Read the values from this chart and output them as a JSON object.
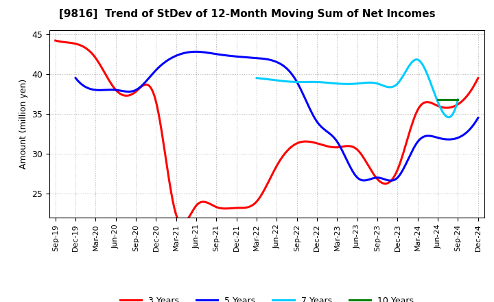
{
  "title": "[9816]  Trend of StDev of 12-Month Moving Sum of Net Incomes",
  "ylabel": "Amount (million yen)",
  "x_labels": [
    "Sep-19",
    "Dec-19",
    "Mar-20",
    "Jun-20",
    "Sep-20",
    "Dec-20",
    "Mar-21",
    "Jun-21",
    "Sep-21",
    "Dec-21",
    "Mar-22",
    "Jun-22",
    "Sep-22",
    "Dec-22",
    "Mar-23",
    "Jun-23",
    "Sep-23",
    "Dec-23",
    "Mar-24",
    "Jun-24",
    "Sep-24",
    "Dec-24"
  ],
  "y3yr": [
    44.2,
    43.8,
    42.0,
    38.0,
    37.8,
    36.5,
    22.3,
    23.5,
    23.3,
    23.2,
    24.0,
    28.5,
    31.3,
    31.3,
    30.8,
    30.5,
    26.8,
    28.0,
    35.5,
    36.0,
    36.2,
    39.5
  ],
  "y5yr": [
    null,
    39.5,
    38.0,
    38.0,
    38.0,
    40.5,
    42.3,
    42.8,
    42.5,
    42.2,
    42.0,
    41.5,
    39.0,
    34.0,
    31.5,
    27.0,
    27.0,
    27.0,
    31.5,
    32.0,
    32.0,
    34.5
  ],
  "y7yr": [
    null,
    null,
    null,
    null,
    null,
    null,
    null,
    null,
    null,
    null,
    39.5,
    39.2,
    39.0,
    39.0,
    38.8,
    38.8,
    38.8,
    38.8,
    41.8,
    36.5,
    36.8,
    null
  ],
  "y10yr": [
    null,
    null,
    null,
    null,
    null,
    null,
    null,
    null,
    null,
    null,
    null,
    null,
    null,
    null,
    null,
    null,
    null,
    null,
    null,
    36.8,
    36.8,
    null
  ],
  "color_3yr": "#FF0000",
  "color_5yr": "#0000FF",
  "color_7yr": "#00CCFF",
  "color_10yr": "#008000",
  "ylim_min": 22,
  "ylim_max": 45.5,
  "yticks": [
    25,
    30,
    35,
    40,
    45
  ],
  "linewidth": 2.2,
  "title_fontsize": 11,
  "axis_fontsize": 9,
  "tick_fontsize": 8
}
